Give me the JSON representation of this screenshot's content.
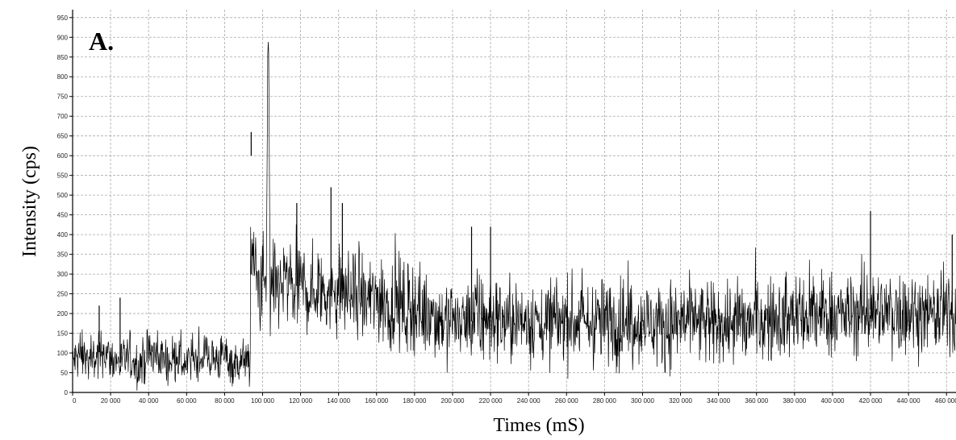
{
  "chart_data": {
    "type": "line",
    "panel_label": "A.",
    "xlabel": "Times (mS)",
    "ylabel": "Intensity (cps)",
    "xlim": [
      0,
      465000
    ],
    "ylim": [
      0,
      970
    ],
    "grid": true,
    "legend": "none",
    "line_color": "#000000",
    "grid_color": "#a8a8a8",
    "yticks": [
      0,
      50,
      100,
      150,
      200,
      250,
      300,
      350,
      400,
      450,
      500,
      550,
      600,
      650,
      700,
      750,
      800,
      850,
      900,
      950
    ],
    "xticks": [
      0,
      20000,
      40000,
      60000,
      80000,
      100000,
      120000,
      140000,
      160000,
      180000,
      200000,
      220000,
      240000,
      260000,
      280000,
      300000,
      320000,
      340000,
      360000,
      380000,
      400000,
      420000,
      440000,
      460000
    ],
    "xtick_labels": [
      "0",
      "20 000",
      "40 000",
      "60 000",
      "80 000",
      "100 000",
      "120 000",
      "140 000",
      "160 000",
      "180 000",
      "200 000",
      "220 000",
      "240 000",
      "260 000",
      "280 000",
      "300 000",
      "320 000",
      "340 000",
      "360 000",
      "380 000",
      "400 000",
      "420 000",
      "440 000",
      "460 000"
    ],
    "series": [
      {
        "values_summary": "noisy time trace sampled about every 200 mS",
        "x": [
          0,
          5000,
          10000,
          15000,
          20000,
          25000,
          30000,
          35000,
          40000,
          45000,
          50000,
          55000,
          60000,
          65000,
          70000,
          75000,
          80000,
          85000,
          90000,
          93500,
          94000,
          95000,
          98000,
          100000,
          102000,
          103000,
          104000,
          108000,
          112000,
          116000,
          120000,
          125000,
          130000,
          135000,
          140000,
          145000,
          150000,
          155000,
          160000,
          165000,
          170000,
          175000,
          180000,
          185000,
          190000,
          195000,
          200000,
          210000,
          220000,
          230000,
          240000,
          250000,
          260000,
          270000,
          280000,
          290000,
          300000,
          310000,
          320000,
          330000,
          340000,
          350000,
          360000,
          370000,
          380000,
          390000,
          400000,
          410000,
          420000,
          430000,
          440000,
          450000,
          460000,
          465000
        ],
        "y": [
          80,
          95,
          70,
          110,
          85,
          75,
          90,
          65,
          100,
          95,
          80,
          90,
          70,
          85,
          90,
          80,
          95,
          75,
          85,
          70,
          600,
          320,
          280,
          260,
          300,
          960,
          250,
          270,
          280,
          260,
          280,
          250,
          270,
          240,
          260,
          250,
          240,
          230,
          240,
          220,
          230,
          210,
          220,
          200,
          200,
          180,
          190,
          180,
          190,
          180,
          185,
          180,
          185,
          175,
          180,
          175,
          180,
          170,
          180,
          175,
          170,
          175,
          180,
          185,
          190,
          195,
          200,
          195,
          210,
          200,
          205,
          195,
          200,
          195
        ],
        "spikes": [
          [
            14000,
            220
          ],
          [
            25000,
            240
          ],
          [
            94000,
            660
          ],
          [
            103000,
            960
          ],
          [
            118000,
            480
          ],
          [
            136000,
            520
          ],
          [
            142000,
            480
          ],
          [
            210000,
            420
          ],
          [
            220000,
            420
          ],
          [
            420000,
            460
          ],
          [
            463000,
            400
          ]
        ]
      }
    ]
  }
}
